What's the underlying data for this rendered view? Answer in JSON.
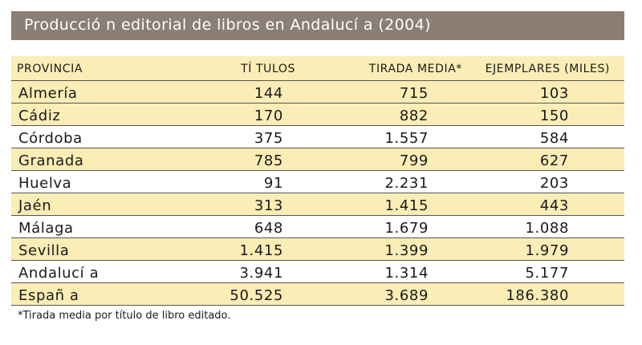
{
  "title": "Producció n editorial de libros en Andalucí a (2004)",
  "headers": {
    "provincia": "PROVINCIA",
    "titulos": "TÍ TULOS",
    "tirada": "TIRADA MEDIA*",
    "ejemplares": "EJEMPLARES (MILES)"
  },
  "rows": [
    {
      "provincia": "Almería",
      "titulos": "144",
      "tirada": "715",
      "ejemplares": "103"
    },
    {
      "provincia": "Cádiz",
      "titulos": "170",
      "tirada": "882",
      "ejemplares": "150"
    },
    {
      "provincia": "Córdoba",
      "titulos": "375",
      "tirada": "1.557",
      "ejemplares": "584"
    },
    {
      "provincia": "Granada",
      "titulos": "785",
      "tirada": "799",
      "ejemplares": "627"
    },
    {
      "provincia": "Huelva",
      "titulos": "91",
      "tirada": "2.231",
      "ejemplares": "203"
    },
    {
      "provincia": "Jaén",
      "titulos": "313",
      "tirada": "1.415",
      "ejemplares": "443"
    },
    {
      "provincia": "Málaga",
      "titulos": "648",
      "tirada": "1.679",
      "ejemplares": "1.088"
    },
    {
      "provincia": "Sevilla",
      "titulos": "1.415",
      "tirada": "1.399",
      "ejemplares": "1.979"
    },
    {
      "provincia": "Andalucí a",
      "titulos": "3.941",
      "tirada": "1.314",
      "ejemplares": "5.177"
    },
    {
      "provincia": "Españ a",
      "titulos": "50.525",
      "tirada": "3.689",
      "ejemplares": "186.380"
    }
  ],
  "footnote": "*Tirada media por título de libro editado.",
  "colors": {
    "title_bar": "#8b7e74",
    "row_shade": "#fbedb6",
    "rule": "#555555"
  }
}
